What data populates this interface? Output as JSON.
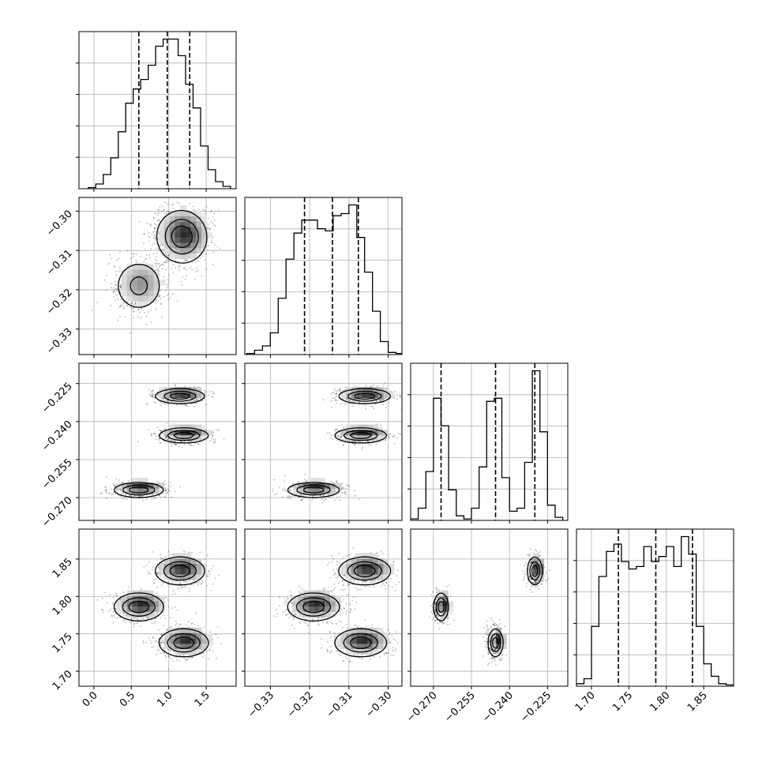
{
  "chart_data": {
    "type": "corner",
    "description_of_panels": "lower-triangle 2D density/contour panels with 1D histograms on the diagonal",
    "grid": true,
    "dimensions": [
      {
        "range": [
          -0.2,
          1.9
        ],
        "ticks": [
          0.0,
          0.5,
          1.0,
          1.5
        ],
        "tick_labels": [
          "0.0",
          "0.5",
          "1.0",
          "1.5"
        ],
        "quantiles": [
          0.6,
          0.98,
          1.28
        ],
        "hist_x": [
          -0.025,
          0.075,
          0.175,
          0.275,
          0.375,
          0.475,
          0.575,
          0.675,
          0.775,
          0.875,
          0.975,
          1.075,
          1.175,
          1.275,
          1.375,
          1.475,
          1.575,
          1.675,
          1.775
        ],
        "hist_y": [
          0.5,
          2,
          6,
          13,
          24,
          36,
          42,
          46,
          52,
          60,
          63,
          63,
          56,
          44,
          34,
          18,
          8,
          3,
          1
        ]
      },
      {
        "range": [
          -0.3365,
          -0.2965
        ],
        "ticks": [
          -0.33,
          -0.32,
          -0.31,
          -0.3
        ],
        "tick_labels": [
          "−0.33",
          "−0.32",
          "−0.31",
          "−0.30"
        ],
        "quantiles": [
          -0.3213,
          -0.3142,
          -0.3076
        ],
        "hist_x": [
          -0.335,
          -0.333,
          -0.331,
          -0.329,
          -0.327,
          -0.325,
          -0.323,
          -0.321,
          -0.319,
          -0.317,
          -0.315,
          -0.313,
          -0.311,
          -0.309,
          -0.307,
          -0.305,
          -0.303,
          -0.301,
          -0.299,
          -0.297
        ],
        "hist_y": [
          0.5,
          2,
          4,
          10,
          26,
          44,
          56,
          62,
          62,
          58,
          57,
          64,
          65,
          69,
          54,
          38,
          20,
          6,
          1,
          0.5
        ]
      },
      {
        "range": [
          -0.279,
          -0.217
        ],
        "ticks": [
          -0.27,
          -0.255,
          -0.24,
          -0.225
        ],
        "tick_labels": [
          "−0.270",
          "−0.255",
          "−0.240",
          "−0.225"
        ],
        "quantiles": [
          -0.267,
          -0.2455,
          -0.23
        ],
        "hist_x": [
          -0.2775,
          -0.2745,
          -0.2715,
          -0.2685,
          -0.2655,
          -0.2625,
          -0.2595,
          -0.2565,
          -0.2535,
          -0.2505,
          -0.2475,
          -0.2445,
          -0.2415,
          -0.2385,
          -0.2355,
          -0.2325,
          -0.2295,
          -0.2265,
          -0.2235,
          -0.2205
        ],
        "hist_y": [
          1,
          8,
          32,
          80,
          62,
          20,
          3,
          1,
          8,
          35,
          78,
          80,
          28,
          6,
          8,
          38,
          98,
          58,
          10,
          2
        ]
      },
      {
        "range": [
          1.68,
          1.89
        ],
        "ticks": [
          1.7,
          1.75,
          1.8,
          1.85
        ],
        "tick_labels": [
          "1.70",
          "1.75",
          "1.80",
          "1.85"
        ],
        "quantiles": [
          1.736,
          1.786,
          1.835
        ],
        "hist_x": [
          1.685,
          1.695,
          1.705,
          1.715,
          1.725,
          1.735,
          1.745,
          1.755,
          1.765,
          1.775,
          1.785,
          1.795,
          1.805,
          1.815,
          1.825,
          1.835,
          1.845,
          1.855,
          1.865,
          1.875,
          1.885
        ],
        "hist_y": [
          1,
          3,
          24,
          44,
          54,
          57,
          50,
          47,
          48,
          56,
          50,
          52,
          56,
          48,
          60,
          53,
          24,
          9,
          4,
          1,
          0.5
        ]
      }
    ],
    "modes": [
      {
        "x": [
          1.15,
          -0.306,
          -0.23,
          1.834
        ],
        "sigma": [
          0.16,
          0.0032,
          0.0014,
          0.009
        ],
        "weight": 1.0
      },
      {
        "x": [
          0.6,
          -0.319,
          -0.267,
          1.786
        ],
        "sigma": [
          0.16,
          0.0032,
          0.0014,
          0.009
        ],
        "weight": 1.0
      },
      {
        "x": [
          1.2,
          -0.307,
          -0.2455,
          1.738
        ],
        "sigma": [
          0.16,
          0.0032,
          0.0014,
          0.009
        ],
        "weight": 1.0
      }
    ]
  }
}
